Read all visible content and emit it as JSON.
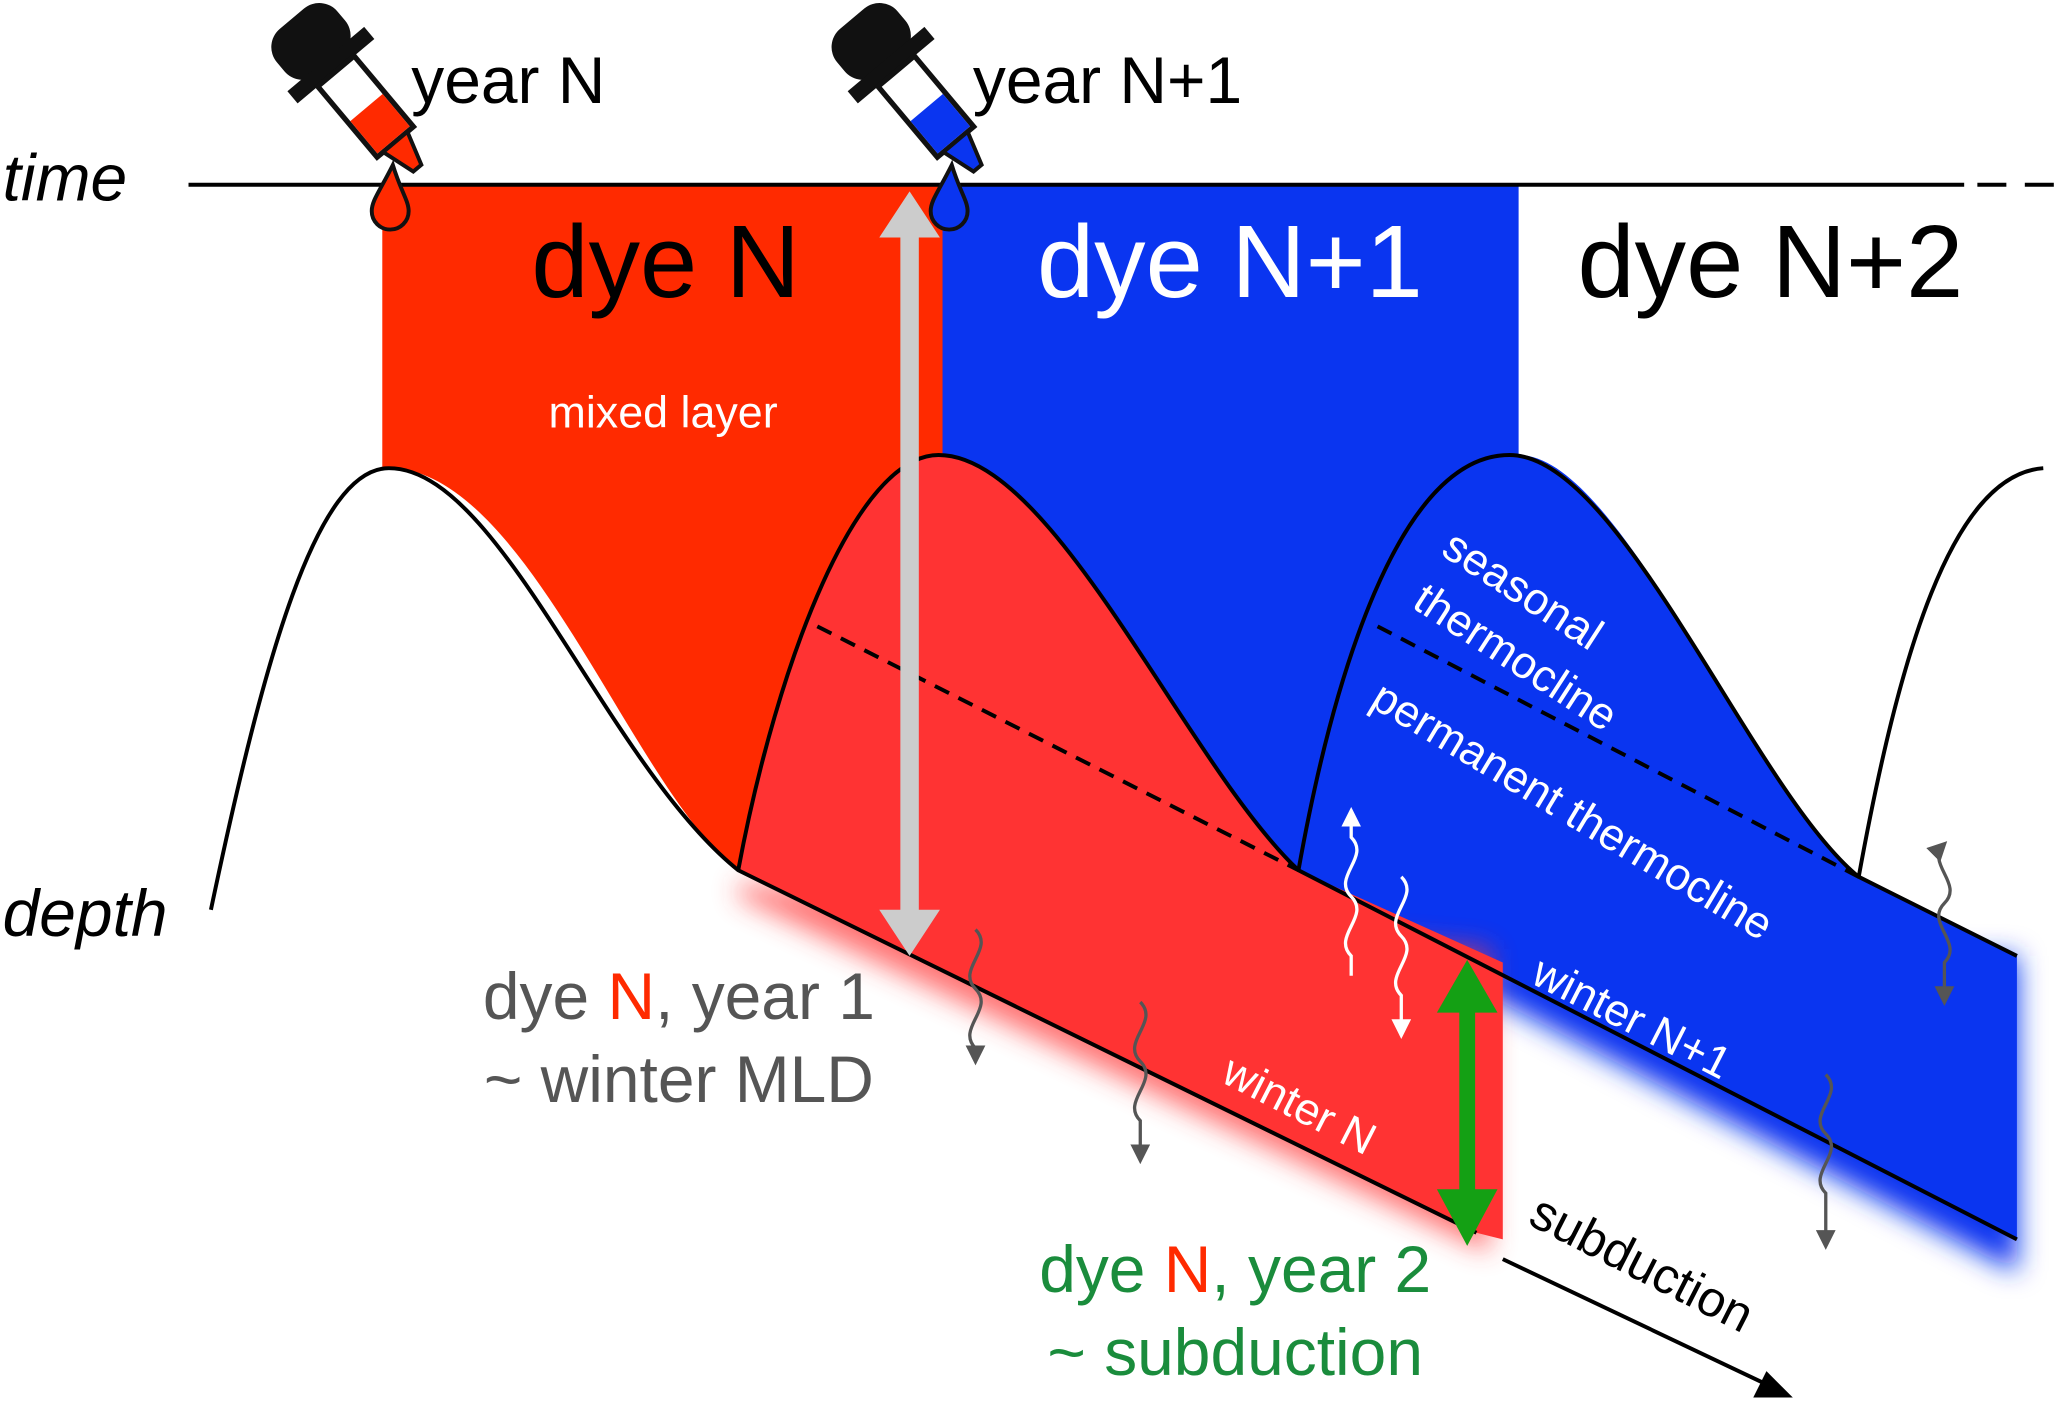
{
  "labels": {
    "year_n": "year N",
    "year_n1": "year N+1",
    "time": "time",
    "depth": "depth"
  },
  "columns": [
    {
      "label": "dye N"
    },
    {
      "label": "dye N+1"
    },
    {
      "label": "dye N+2"
    }
  ],
  "regions": {
    "mixed_layer": "mixed layer",
    "seasonal_1": "seasonal",
    "seasonal_2": "thermocline",
    "permanent": "permanent thermocline",
    "winter_n1": "winter N+1",
    "winter_n": "winter N"
  },
  "year1": {
    "prefix": "dye ",
    "dye": "N",
    "suffix": ", year 1",
    "line2": "~ winter MLD"
  },
  "year2": {
    "prefix": "dye ",
    "dye": "N",
    "suffix": ", year 2",
    "line2": "~ subduction"
  },
  "subduction": "subduction"
}
